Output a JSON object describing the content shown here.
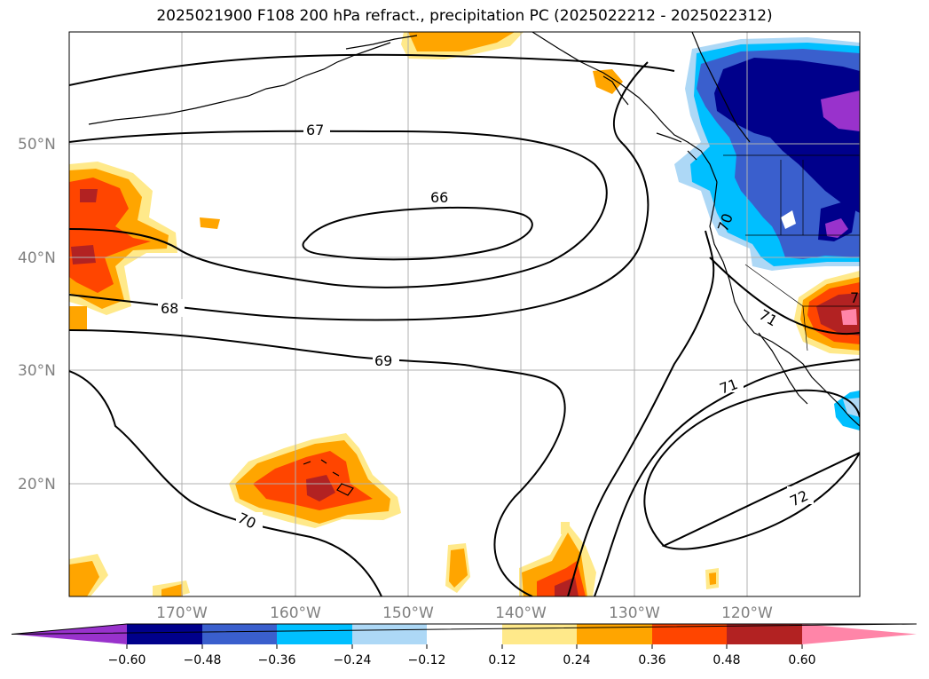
{
  "title": "2025021900 F108 200 hPa refract., precipitation PC (2025022212 - 2025022312)",
  "map": {
    "lat_labels": [
      "50°N",
      "40°N",
      "30°N",
      "20°N"
    ],
    "lon_labels": [
      "170°W",
      "160°W",
      "150°W",
      "140°W",
      "130°W",
      "120°W"
    ],
    "contour_labels": [
      "67",
      "66",
      "68",
      "69",
      "70",
      "70",
      "71",
      "71",
      "72",
      "7"
    ]
  },
  "colorbar": {
    "ticks": [
      "−0.60",
      "−0.48",
      "−0.36",
      "−0.24",
      "−0.12",
      "0.12",
      "0.24",
      "0.36",
      "0.48",
      "0.60"
    ],
    "colors": [
      "#9932cc",
      "#00008b",
      "#3a5fcd",
      "#00bfff",
      "#add8f6",
      "#ffffff",
      "#ffe98a",
      "#ffa500",
      "#ff4500",
      "#b22222",
      "#ff85a8"
    ]
  }
}
